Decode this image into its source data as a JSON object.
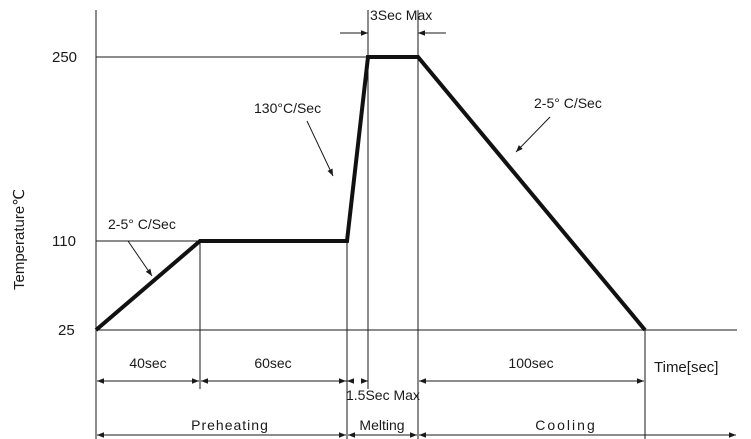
{
  "chart_data": {
    "type": "line",
    "ylabel": "Temperature℃",
    "xlabel": "Time[sec]",
    "y_ticks": [
      "250",
      "110",
      "25"
    ],
    "annotations": {
      "slope_preheat": "2-5° C/Sec",
      "slope_ramp": "130°C/Sec",
      "slope_cool": "2-5° C/Sec",
      "peak_hold": "3Sec Max",
      "ramp_time": "1.5Sec Max"
    },
    "durations": {
      "ramp_to_110": "40sec",
      "soak": "60sec",
      "cooling": "100sec"
    },
    "phases": [
      "Preheating",
      "Melting",
      "Cooling"
    ],
    "profile_points": [
      {
        "time_sec": 0,
        "temp_c": 25
      },
      {
        "time_sec": 40,
        "temp_c": 110
      },
      {
        "time_sec": 100,
        "temp_c": 110
      },
      {
        "time_sec": 101.5,
        "temp_c": 250
      },
      {
        "time_sec": 104.5,
        "temp_c": 250
      },
      {
        "time_sec": 204.5,
        "temp_c": 25
      }
    ]
  }
}
